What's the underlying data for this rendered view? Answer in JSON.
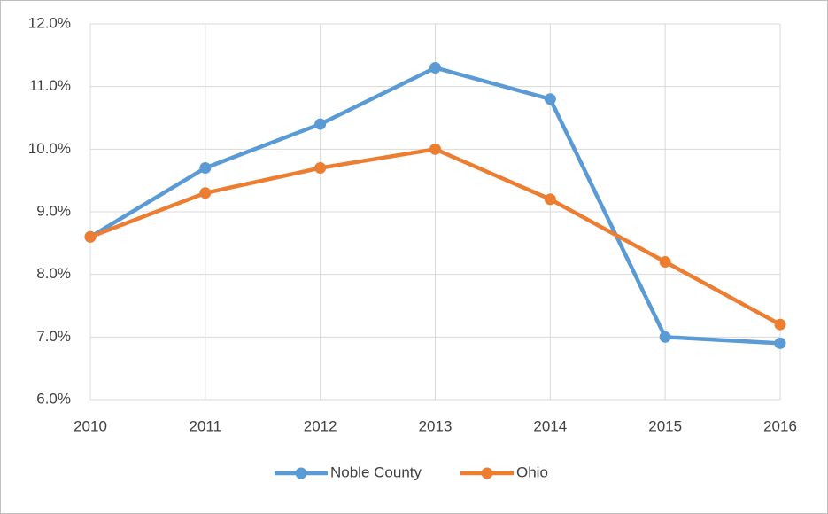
{
  "chart_data": {
    "type": "line",
    "x": [
      2010,
      2011,
      2012,
      2013,
      2014,
      2015,
      2016
    ],
    "series": [
      {
        "name": "Noble County",
        "color": "#5b9bd5",
        "values": [
          8.6,
          9.7,
          10.4,
          11.3,
          10.8,
          7.0,
          6.9
        ]
      },
      {
        "name": "Ohio",
        "color": "#ed7d31",
        "values": [
          8.6,
          9.3,
          9.7,
          10.0,
          9.2,
          8.2,
          7.2
        ]
      }
    ],
    "xlim": [
      2010,
      2016
    ],
    "xticks": [
      2010,
      2011,
      2012,
      2013,
      2014,
      2015,
      2016
    ],
    "ylim": [
      6,
      12
    ],
    "yticks": [
      {
        "value": 6,
        "label": "6.0%"
      },
      {
        "value": 7,
        "label": "7.0%"
      },
      {
        "value": 8,
        "label": "8.0%"
      },
      {
        "value": 9,
        "label": "9.0%"
      },
      {
        "value": 10,
        "label": "10.0%"
      },
      {
        "value": 11,
        "label": "11.0%"
      },
      {
        "value": 12,
        "label": "12.0%"
      }
    ],
    "grid": true,
    "legend": "bottom"
  }
}
